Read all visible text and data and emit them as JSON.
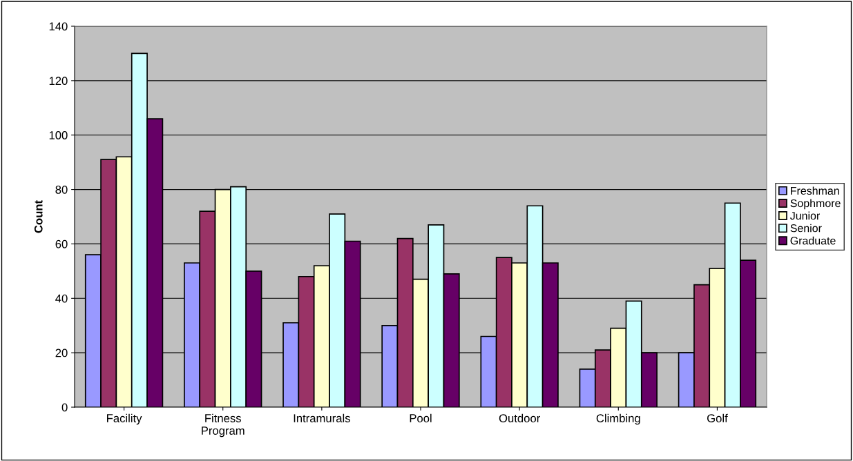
{
  "chart_data": {
    "type": "bar",
    "ylabel": "Count",
    "categories": [
      "Facility",
      "Fitness\nProgram",
      "Intramurals",
      "Pool",
      "Outdoor",
      "Climbing",
      "Golf"
    ],
    "series": [
      {
        "name": "Freshman",
        "color": "#9999ff",
        "values": [
          56,
          53,
          31,
          30,
          26,
          14,
          20
        ]
      },
      {
        "name": "Sophmore",
        "color": "#993366",
        "values": [
          91,
          72,
          48,
          62,
          55,
          21,
          45
        ]
      },
      {
        "name": "Junior",
        "color": "#ffffcc",
        "values": [
          92,
          80,
          52,
          47,
          53,
          29,
          51
        ]
      },
      {
        "name": "Senior",
        "color": "#ccffff",
        "values": [
          130,
          81,
          71,
          67,
          74,
          39,
          75
        ]
      },
      {
        "name": "Graduate",
        "color": "#660066",
        "values": [
          106,
          50,
          61,
          49,
          53,
          20,
          54
        ]
      }
    ],
    "ylim": [
      0,
      140
    ],
    "yticks": [
      0,
      20,
      40,
      60,
      80,
      100,
      120,
      140
    ],
    "grid": "y",
    "legend": "right"
  }
}
